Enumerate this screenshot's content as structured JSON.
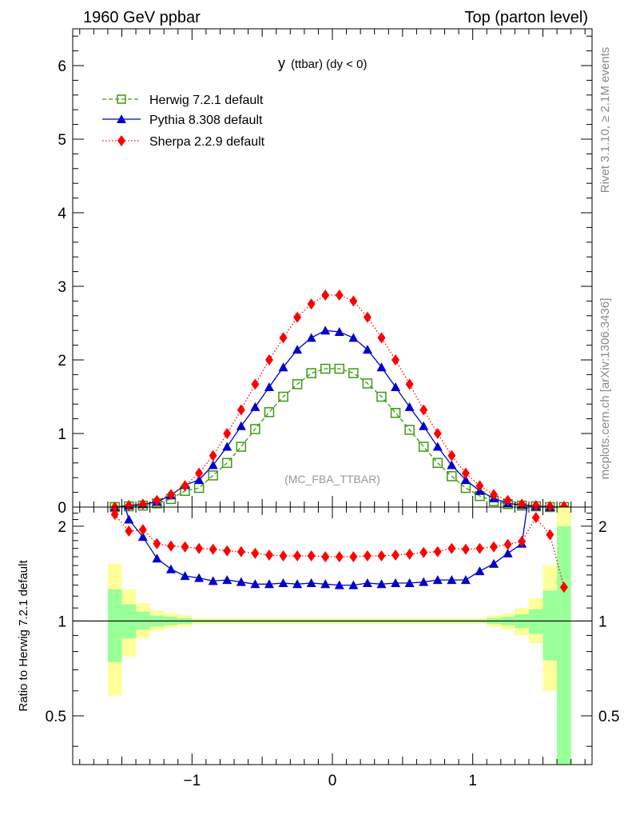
{
  "header": {
    "left": "1960 GeV ppbar",
    "right": "Top (parton level)"
  },
  "side_labels": {
    "rivet": "Rivet 3.1.10, ≥ 2.1M events",
    "mcplots": "mcplots.cern.ch [arXiv:1306.3436]"
  },
  "plot_title_main": "y",
  "plot_title_sub": "(ttbar) (dy < 0)",
  "analysis_label": "(MC_FBA_TTBAR)",
  "ratio_ylabel": "Ratio to Herwig 7.2.1 default",
  "colors": {
    "herwig": "#3a9a10",
    "pythia": "#0000cc",
    "sherpa": "#ff0000",
    "band_yellow": "#ffff99",
    "band_green": "#99ff99"
  },
  "chart_data": [
    {
      "type": "line",
      "panel": "main",
      "xlim": [
        -1.85,
        1.85
      ],
      "ylim": [
        0,
        6.5
      ],
      "yticks": [
        0,
        1,
        2,
        3,
        4,
        5,
        6
      ],
      "legend": "top-left",
      "x": [
        -1.55,
        -1.45,
        -1.35,
        -1.25,
        -1.15,
        -1.05,
        -0.95,
        -0.85,
        -0.75,
        -0.65,
        -0.55,
        -0.45,
        -0.35,
        -0.25,
        -0.15,
        -0.05,
        0.05,
        0.15,
        0.25,
        0.35,
        0.45,
        0.55,
        0.65,
        0.75,
        0.85,
        0.95,
        1.05,
        1.15,
        1.25,
        1.35,
        1.45,
        1.55,
        1.65
      ],
      "series": [
        {
          "name": "Herwig 7.2.1 default",
          "marker": "open-square",
          "style": "dashed",
          "values": [
            0.0,
            0.01,
            0.02,
            0.05,
            0.11,
            0.22,
            0.26,
            0.43,
            0.6,
            0.82,
            1.06,
            1.29,
            1.5,
            1.67,
            1.82,
            1.88,
            1.88,
            1.82,
            1.68,
            1.5,
            1.28,
            1.05,
            0.82,
            0.6,
            0.42,
            0.26,
            0.15,
            0.08,
            0.04,
            0.02,
            0.01,
            0.0,
            0.0
          ]
        },
        {
          "name": "Pythia 8.308 default",
          "marker": "filled-triangle",
          "style": "solid",
          "values": [
            0.0,
            0.02,
            0.04,
            0.07,
            0.16,
            0.3,
            0.37,
            0.57,
            0.82,
            1.1,
            1.36,
            1.63,
            1.9,
            2.14,
            2.3,
            2.4,
            2.38,
            2.3,
            2.14,
            1.9,
            1.63,
            1.36,
            1.1,
            0.82,
            0.57,
            0.37,
            0.22,
            0.12,
            0.05,
            0.03,
            0.01,
            0.0,
            0.0
          ]
        },
        {
          "name": "Sherpa 2.2.9 default",
          "marker": "filled-diamond",
          "style": "dotted",
          "values": [
            0.0,
            0.02,
            0.04,
            0.09,
            0.17,
            0.29,
            0.46,
            0.7,
            1.0,
            1.32,
            1.67,
            2.0,
            2.3,
            2.58,
            2.76,
            2.88,
            2.88,
            2.8,
            2.58,
            2.3,
            2.0,
            1.67,
            1.32,
            1.0,
            0.7,
            0.46,
            0.29,
            0.17,
            0.09,
            0.04,
            0.02,
            0.01,
            0.01
          ]
        }
      ]
    },
    {
      "type": "line",
      "panel": "ratio",
      "ylabel": "Ratio to Herwig 7.2.1 default",
      "xlim": [
        -1.85,
        1.85
      ],
      "ylim": [
        0.35,
        2.3
      ],
      "log_y": true,
      "yticks": [
        0.5,
        1,
        2
      ],
      "xticks": [
        -1,
        0,
        1
      ],
      "x": [
        -1.55,
        -1.45,
        -1.35,
        -1.25,
        -1.15,
        -1.05,
        -0.95,
        -0.85,
        -0.75,
        -0.65,
        -0.55,
        -0.45,
        -0.35,
        -0.25,
        -0.15,
        -0.05,
        0.05,
        0.15,
        0.25,
        0.35,
        0.45,
        0.55,
        0.65,
        0.75,
        0.85,
        0.95,
        1.05,
        1.15,
        1.25,
        1.35,
        1.45,
        1.55,
        1.65
      ],
      "series": [
        {
          "name": "Pythia 8.308 default",
          "values": [
            null,
            2.1,
            1.85,
            1.58,
            1.46,
            1.39,
            1.37,
            1.34,
            1.35,
            1.33,
            1.31,
            1.31,
            1.32,
            1.31,
            1.32,
            1.31,
            1.3,
            1.3,
            1.32,
            1.31,
            1.32,
            1.32,
            1.33,
            1.35,
            1.35,
            1.35,
            1.44,
            1.52,
            1.64,
            1.76,
            null,
            null,
            null
          ]
        },
        {
          "name": "Sherpa 2.2.9 default",
          "values": [
            2.18,
            1.93,
            1.95,
            1.76,
            1.73,
            1.72,
            1.7,
            1.69,
            1.67,
            1.66,
            1.64,
            1.62,
            1.61,
            1.61,
            1.61,
            1.6,
            1.6,
            1.6,
            1.61,
            1.61,
            1.62,
            1.63,
            1.65,
            1.66,
            1.7,
            1.69,
            1.7,
            1.72,
            1.75,
            1.79,
            2.13,
            1.88,
            1.28
          ]
        }
      ],
      "uncertainty_bands": {
        "x_edges": [
          -1.6,
          -1.5,
          -1.4,
          -1.3,
          -1.2,
          -1.1,
          -1.0,
          1.0,
          1.1,
          1.2,
          1.3,
          1.4,
          1.5,
          1.6,
          1.7
        ],
        "green_hi": [
          1.26,
          1.13,
          1.07,
          1.04,
          1.03,
          1.02,
          1.01,
          1.01,
          1.02,
          1.03,
          1.05,
          1.09,
          1.25,
          2.0
        ],
        "green_lo": [
          0.74,
          0.88,
          0.94,
          0.96,
          0.97,
          0.98,
          0.99,
          0.99,
          0.98,
          0.97,
          0.95,
          0.91,
          0.75,
          0.3
        ],
        "yellow_hi": [
          1.52,
          1.26,
          1.14,
          1.08,
          1.06,
          1.04,
          1.02,
          1.02,
          1.04,
          1.06,
          1.1,
          1.18,
          1.5,
          2.3
        ],
        "yellow_lo": [
          0.58,
          0.77,
          0.88,
          0.93,
          0.95,
          0.96,
          0.98,
          0.98,
          0.96,
          0.94,
          0.9,
          0.85,
          0.6,
          0.3
        ]
      }
    }
  ]
}
